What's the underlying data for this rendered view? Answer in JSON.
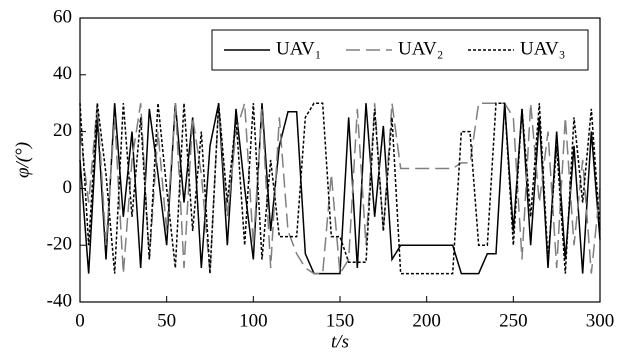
{
  "chart_data": {
    "type": "line",
    "xlabel": "t/s",
    "ylabel": "φ/(°)",
    "x": [
      0,
      5,
      10,
      15,
      20,
      25,
      30,
      35,
      40,
      45,
      50,
      55,
      60,
      65,
      70,
      75,
      80,
      85,
      90,
      95,
      100,
      105,
      110,
      115,
      120,
      125,
      130,
      135,
      140,
      145,
      150,
      155,
      160,
      165,
      170,
      175,
      180,
      185,
      190,
      195,
      200,
      205,
      210,
      215,
      220,
      225,
      230,
      235,
      240,
      245,
      250,
      255,
      260,
      265,
      270,
      275,
      280,
      285,
      290,
      295,
      300
    ],
    "series": [
      {
        "name": "UAV₁",
        "color": "#000000",
        "dash": "solid",
        "values": [
          10,
          -30,
          25,
          -25,
          30,
          -10,
          20,
          -28,
          28,
          5,
          -20,
          30,
          -5,
          25,
          -28,
          15,
          30,
          -20,
          28,
          0,
          -25,
          30,
          -15,
          15,
          27,
          27,
          -23,
          -30,
          -30,
          -30,
          -30,
          25,
          -28,
          30,
          -10,
          22,
          -25,
          -20,
          -20,
          -20,
          -20,
          -20,
          -20,
          -20,
          -30,
          -30,
          -30,
          -23,
          -23,
          30,
          -15,
          28,
          -20,
          25,
          -28,
          20,
          -25,
          15,
          -30,
          20,
          -18
        ]
      },
      {
        "name": "UAV₂",
        "color": "#808080",
        "dash": "dashed",
        "values": [
          20,
          -5,
          30,
          -20,
          25,
          -30,
          10,
          30,
          -25,
          20,
          -15,
          30,
          -28,
          25,
          5,
          -30,
          30,
          -10,
          20,
          30,
          -20,
          28,
          -28,
          25,
          -15,
          -23,
          -28,
          -30,
          -30,
          5,
          -30,
          -25,
          28,
          -20,
          30,
          -15,
          30,
          7,
          7,
          7,
          7,
          7,
          7,
          7,
          9,
          9,
          30,
          30,
          30,
          30,
          25,
          -25,
          30,
          -5,
          20,
          -28,
          25,
          -20,
          10,
          -30,
          0
        ]
      },
      {
        "name": "UAV₃",
        "color": "#000000",
        "dash": "dotted",
        "values": [
          30,
          -20,
          30,
          5,
          -30,
          30,
          -10,
          25,
          -25,
          30,
          0,
          -28,
          30,
          -15,
          20,
          -30,
          30,
          -5,
          25,
          -20,
          30,
          -25,
          10,
          -17,
          -17,
          -17,
          25,
          30,
          30,
          -17,
          -17,
          -26,
          -26,
          -26,
          28,
          -15,
          25,
          -30,
          -30,
          -30,
          -30,
          -30,
          -30,
          -30,
          20,
          20,
          -20,
          -20,
          30,
          30,
          -20,
          28,
          -10,
          30,
          -25,
          15,
          -30,
          25,
          -5,
          28,
          -15
        ]
      }
    ],
    "xlim": [
      0,
      300
    ],
    "xticks": [
      0,
      50,
      100,
      150,
      200,
      250,
      300
    ],
    "ylim": [
      -40,
      60
    ],
    "yticks": [
      -40,
      -20,
      0,
      20,
      40,
      60
    ],
    "legend": "upper right"
  }
}
